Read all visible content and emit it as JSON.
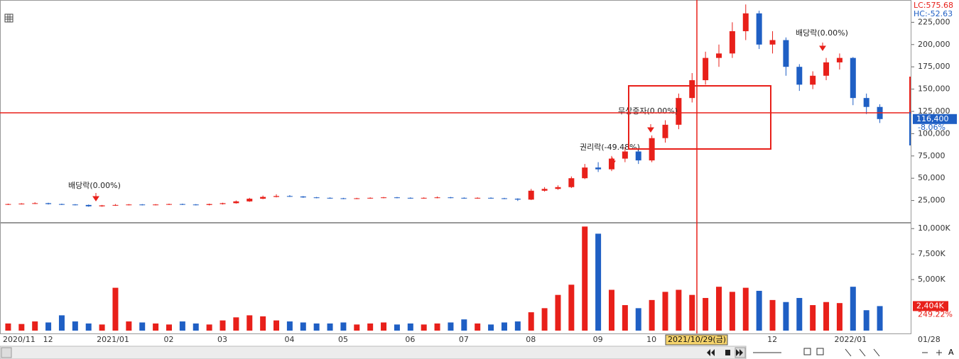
{
  "indicators": {
    "lc": "LC:575.68",
    "hc": "HC:-52.63"
  },
  "cursor_date": "2021/10/29(금)",
  "last_date": "01/28",
  "annotations": [
    "배당락(0.00%)",
    "권리락(-49.48%)",
    "무상증자(0.00%)",
    "배당락(0.00%)"
  ],
  "chart_data": [
    {
      "type": "candlestick",
      "categories": [
        "2020/11",
        null,
        null,
        "12",
        null,
        null,
        null,
        "2021/01",
        null,
        null,
        null,
        null,
        "02",
        null,
        null,
        null,
        "03",
        null,
        null,
        null,
        null,
        "04",
        null,
        null,
        null,
        "05",
        null,
        null,
        null,
        null,
        "06",
        null,
        null,
        null,
        "07",
        null,
        null,
        null,
        null,
        "08",
        null,
        null,
        null,
        null,
        "09",
        null,
        null,
        null,
        "10",
        null,
        null,
        null,
        null,
        null,
        null,
        null,
        null,
        "12",
        null,
        null,
        null,
        null,
        "2022/01",
        null,
        null,
        null
      ],
      "open": [
        20500,
        21000,
        21500,
        22000,
        21000,
        20500,
        20000,
        18500,
        19500,
        20000,
        20500,
        20000,
        20500,
        21000,
        20500,
        20000,
        21000,
        22000,
        24000,
        27000,
        29000,
        30000,
        29500,
        28500,
        28000,
        27500,
        27000,
        27500,
        28000,
        28500,
        28000,
        27500,
        28000,
        28500,
        28000,
        27500,
        28000,
        27500,
        27000,
        26000,
        36000,
        38000,
        40000,
        50000,
        62000,
        60000,
        72000,
        80000,
        70000,
        95000,
        110000,
        140000,
        160000,
        185000,
        190000,
        215000,
        235000,
        200000,
        205000,
        175000,
        155000,
        165000,
        180000,
        185000,
        140000,
        130000
      ],
      "high": [
        21500,
        22000,
        23000,
        22500,
        21500,
        21000,
        20500,
        20000,
        21000,
        21000,
        21000,
        21000,
        21500,
        21500,
        21000,
        21500,
        22500,
        25000,
        28000,
        30500,
        32000,
        31000,
        30000,
        29000,
        28500,
        28000,
        28000,
        28500,
        29000,
        29000,
        28500,
        28500,
        29500,
        29000,
        28500,
        28500,
        28500,
        28000,
        27500,
        38000,
        40000,
        42000,
        52000,
        66000,
        68000,
        75000,
        85000,
        82000,
        98000,
        115000,
        145000,
        168000,
        192000,
        200000,
        225000,
        245000,
        238000,
        215000,
        208000,
        178000,
        170000,
        185000,
        190000,
        186000,
        145000,
        133000
      ],
      "low": [
        20000,
        20500,
        21000,
        20500,
        20000,
        19500,
        18000,
        18000,
        19000,
        19500,
        19500,
        19500,
        20000,
        20000,
        19500,
        19500,
        20500,
        21500,
        23500,
        26500,
        28500,
        29000,
        28000,
        27500,
        27000,
        26500,
        26500,
        27000,
        27500,
        27500,
        27000,
        27000,
        27500,
        27500,
        27000,
        27000,
        27000,
        26500,
        24500,
        25500,
        35000,
        37000,
        39000,
        49000,
        57000,
        58000,
        68000,
        66000,
        68000,
        90000,
        105000,
        135000,
        155000,
        175000,
        185000,
        205000,
        195000,
        190000,
        165000,
        148000,
        150000,
        160000,
        172000,
        132000,
        122000,
        112000
      ],
      "close": [
        21000,
        21500,
        22000,
        21000,
        20500,
        20000,
        18500,
        19500,
        20000,
        20500,
        20000,
        20500,
        21000,
        20500,
        20000,
        21000,
        22000,
        24000,
        27000,
        29000,
        30000,
        29500,
        28500,
        28000,
        27500,
        27000,
        27500,
        28000,
        28500,
        28000,
        27500,
        28000,
        28500,
        28000,
        27500,
        28000,
        27500,
        27000,
        26000,
        36000,
        38000,
        40000,
        50000,
        62000,
        60000,
        72000,
        80000,
        70000,
        95000,
        110000,
        140000,
        160000,
        185000,
        190000,
        215000,
        235000,
        200000,
        205000,
        175000,
        155000,
        165000,
        180000,
        185000,
        140000,
        130000,
        116400
      ],
      "up_color": "#e8201a",
      "down_color": "#1f5fc4",
      "ylim": [
        0,
        250000
      ],
      "yticks": [
        {
          "value": 25000,
          "label": "25,000"
        },
        {
          "value": 50000,
          "label": "50,000"
        },
        {
          "value": 75000,
          "label": "75,000"
        },
        {
          "value": 100000,
          "label": "100,000"
        },
        {
          "value": 125000,
          "label": "125,000"
        },
        {
          "value": 150000,
          "label": "150,000"
        },
        {
          "value": 175000,
          "label": "175,000"
        },
        {
          "value": 200000,
          "label": "200,000"
        },
        {
          "value": 225000,
          "label": "225,000"
        }
      ],
      "last_price": {
        "value": 116400,
        "label": "116,400"
      },
      "last_change": "-8.06%"
    },
    {
      "type": "bar",
      "values": [
        700,
        650,
        900,
        800,
        1500,
        900,
        700,
        600,
        4200,
        900,
        800,
        700,
        600,
        900,
        700,
        600,
        1000,
        1300,
        1500,
        1400,
        1000,
        900,
        800,
        700,
        700,
        800,
        600,
        700,
        800,
        600,
        700,
        600,
        700,
        800,
        1100,
        700,
        600,
        800,
        900,
        1800,
        2200,
        3500,
        4500,
        10200,
        9500,
        4000,
        2500,
        2200,
        3000,
        3800,
        4000,
        3500,
        3200,
        4300,
        3800,
        4200,
        3900,
        3000,
        2800,
        3200,
        2500,
        2800,
        2700,
        4300,
        2000,
        2404
      ],
      "ylim": [
        0,
        10500
      ],
      "yticks": [
        {
          "value": 5000,
          "label": "5,000K"
        },
        {
          "value": 7500,
          "label": "7,500K"
        },
        {
          "value": 10000,
          "label": "10,000K"
        }
      ],
      "last_volume": {
        "value": 2404,
        "label": "2,404K"
      },
      "last_ratio": "249.22%"
    }
  ]
}
